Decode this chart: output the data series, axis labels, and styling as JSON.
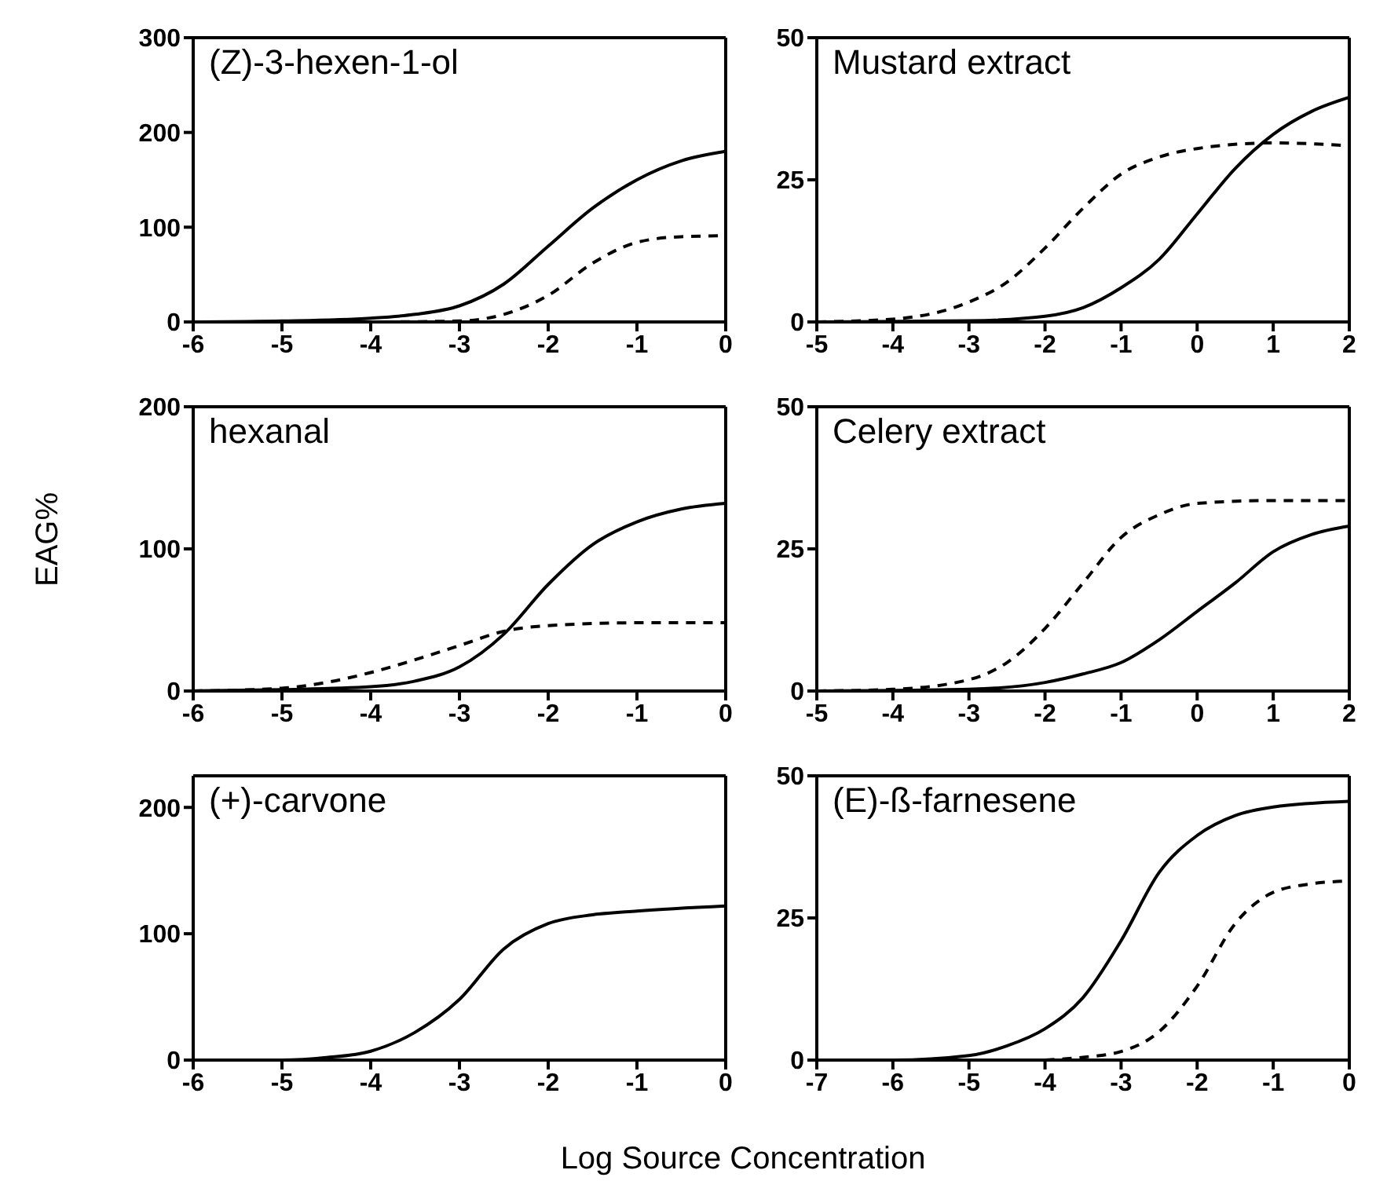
{
  "chart_data": [
    {
      "type": "line",
      "title": "(Z)-3-hexen-1-ol",
      "xlim": [
        -6,
        0
      ],
      "xticks": [
        -6,
        -5,
        -4,
        -3,
        -2,
        -1,
        0
      ],
      "ylim": [
        0,
        300
      ],
      "yticks": [
        0,
        100,
        200,
        300
      ],
      "marker": "none",
      "series": [
        {
          "color": "#000000",
          "line_style": "solid",
          "x": [
            -6,
            -5,
            -4,
            -3.5,
            -3,
            -2.5,
            -2,
            -1.5,
            -1,
            -0.5,
            0
          ],
          "values": [
            0,
            1,
            4,
            8,
            17,
            40,
            80,
            120,
            150,
            170,
            180
          ]
        },
        {
          "color": "#000000",
          "line_style": "dashed",
          "x": [
            -6,
            -4,
            -3,
            -2.5,
            -2,
            -1.5,
            -1,
            -0.5,
            0
          ],
          "values": [
            0,
            0,
            1,
            8,
            28,
            62,
            84,
            90,
            91
          ]
        }
      ]
    },
    {
      "type": "line",
      "title": "Mustard extract",
      "xlim": [
        -5,
        2
      ],
      "xticks": [
        -5,
        -4,
        -3,
        -2,
        -1,
        0,
        1,
        2
      ],
      "ylim": [
        0,
        50
      ],
      "yticks": [
        0,
        25,
        50
      ],
      "marker": "none",
      "series": [
        {
          "color": "#000000",
          "line_style": "solid",
          "x": [
            -5,
            -3,
            -2,
            -1.5,
            -1,
            -0.5,
            0,
            0.5,
            1,
            1.5,
            2
          ],
          "values": [
            0,
            0.2,
            1,
            2.5,
            6,
            11,
            19,
            27,
            33,
            37,
            39.5
          ]
        },
        {
          "color": "#000000",
          "line_style": "dashed",
          "x": [
            -5,
            -4,
            -3,
            -2.5,
            -2,
            -1.5,
            -1,
            -0.5,
            0,
            1,
            2
          ],
          "values": [
            0,
            0.5,
            3.5,
            7,
            13,
            20,
            26,
            29,
            30.5,
            31.5,
            31
          ]
        }
      ]
    },
    {
      "type": "line",
      "title": "hexanal",
      "ylabel": "EAG%",
      "xlim": [
        -6,
        0
      ],
      "xticks": [
        -6,
        -5,
        -4,
        -3,
        -2,
        -1,
        0
      ],
      "ylim": [
        0,
        200
      ],
      "yticks": [
        0,
        100,
        200
      ],
      "marker": "none",
      "series": [
        {
          "color": "#000000",
          "line_style": "solid",
          "x": [
            -6,
            -5,
            -4,
            -3.5,
            -3,
            -2.5,
            -2,
            -1.5,
            -1,
            -0.5,
            0
          ],
          "values": [
            0,
            1,
            3,
            7,
            17,
            40,
            75,
            103,
            119,
            128,
            132
          ]
        },
        {
          "color": "#000000",
          "line_style": "dashed",
          "x": [
            -6,
            -5,
            -4.5,
            -4,
            -3.5,
            -3,
            -2.5,
            -2,
            -1,
            0
          ],
          "values": [
            0,
            2,
            6,
            13,
            22,
            32,
            42,
            46,
            48,
            48
          ]
        }
      ]
    },
    {
      "type": "line",
      "title": "Celery extract",
      "xlim": [
        -5,
        2
      ],
      "xticks": [
        -5,
        -4,
        -3,
        -2,
        -1,
        0,
        1,
        2
      ],
      "ylim": [
        0,
        50
      ],
      "yticks": [
        0,
        25,
        50
      ],
      "marker": "none",
      "series": [
        {
          "color": "#000000",
          "line_style": "solid",
          "x": [
            -5,
            -3,
            -2,
            -1.5,
            -1,
            -0.5,
            0,
            0.5,
            1,
            1.5,
            2
          ],
          "values": [
            0,
            0.3,
            1.5,
            3,
            5,
            9,
            14,
            19,
            24.5,
            27.5,
            29
          ]
        },
        {
          "color": "#000000",
          "line_style": "dashed",
          "x": [
            -5,
            -4,
            -3,
            -2.5,
            -2,
            -1.5,
            -1,
            -0.5,
            0,
            1,
            2
          ],
          "values": [
            0,
            0.3,
            2,
            5,
            11,
            19,
            27,
            31,
            33,
            33.5,
            33.5
          ]
        }
      ]
    },
    {
      "type": "line",
      "title": "(+)-carvone",
      "xlabel": "Log Source Concentration",
      "xlim": [
        -6,
        0
      ],
      "xticks": [
        -6,
        -5,
        -4,
        -3,
        -2,
        -1,
        0
      ],
      "ylim": [
        0,
        225
      ],
      "yticks": [
        0,
        100,
        200
      ],
      "marker": "none",
      "series": [
        {
          "color": "#000000",
          "line_style": "solid",
          "x": [
            -6,
            -5,
            -4.5,
            -4,
            -3.5,
            -3,
            -2.5,
            -2,
            -1.5,
            -1,
            0
          ],
          "values": [
            0,
            0,
            2,
            7,
            22,
            48,
            88,
            108,
            115,
            118,
            122
          ]
        }
      ]
    },
    {
      "type": "line",
      "title": "(E)-ß-farnesene",
      "xlim": [
        -7,
        0
      ],
      "xticks": [
        -7,
        -6,
        -5,
        -4,
        -3,
        -2,
        -1,
        0
      ],
      "ylim": [
        0,
        50
      ],
      "yticks": [
        0,
        25,
        50
      ],
      "marker": "none",
      "series": [
        {
          "color": "#000000",
          "line_style": "solid",
          "x": [
            -7,
            -6,
            -5,
            -4.5,
            -4,
            -3.5,
            -3,
            -2.5,
            -2,
            -1.5,
            -1,
            0
          ],
          "values": [
            0,
            0,
            0.8,
            2.5,
            5.5,
            11,
            21,
            33,
            39.5,
            43,
            44.5,
            45.5
          ]
        },
        {
          "color": "#000000",
          "line_style": "dashed",
          "x": [
            -4,
            -3.5,
            -3,
            -2.5,
            -2,
            -1.5,
            -1,
            -0.5,
            0
          ],
          "values": [
            0,
            0.5,
            1.5,
            5,
            13,
            24,
            29.5,
            31,
            31.5
          ]
        }
      ]
    }
  ]
}
